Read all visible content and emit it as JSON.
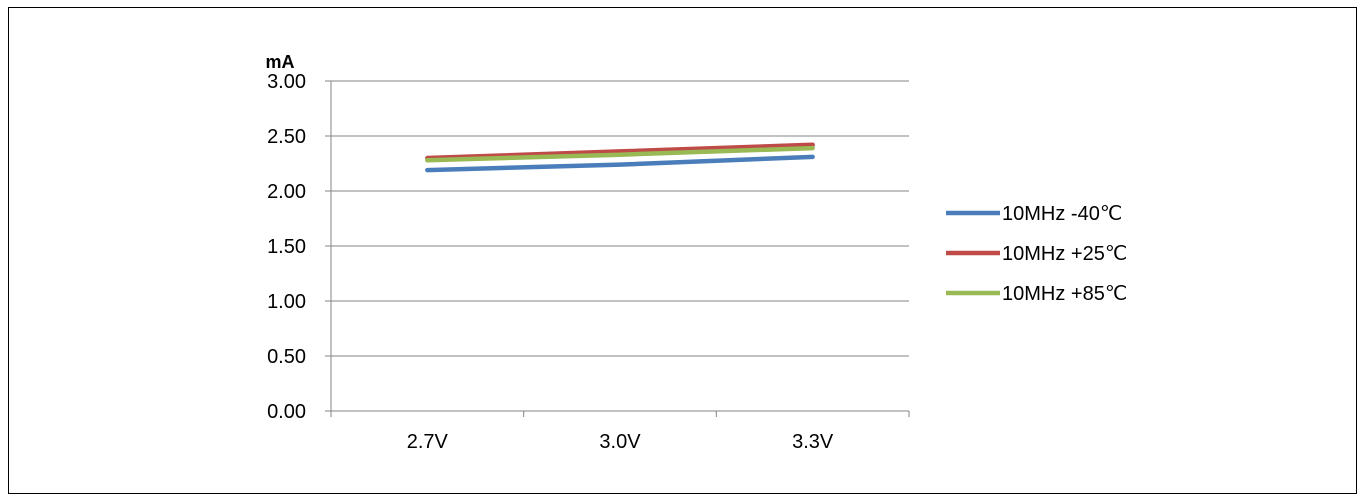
{
  "chart_data": {
    "type": "line",
    "title": "",
    "xlabel": "",
    "ylabel": "mA",
    "categories": [
      "2.7V",
      "3.0V",
      "3.3V"
    ],
    "ylim": [
      0,
      3
    ],
    "y_ticks": [
      "0.00",
      "0.50",
      "1.00",
      "1.50",
      "2.00",
      "2.50",
      "3.00"
    ],
    "grid": true,
    "legend_position": "right",
    "series": [
      {
        "name": "10MHz -40℃",
        "color": "#4a7ebb",
        "values": [
          2.19,
          2.24,
          2.31
        ]
      },
      {
        "name": "10MHz +25℃",
        "color": "#be4b48",
        "values": [
          2.3,
          2.36,
          2.42
        ]
      },
      {
        "name": "10MHz +85℃",
        "color": "#98b954",
        "values": [
          2.28,
          2.33,
          2.39
        ]
      }
    ]
  }
}
